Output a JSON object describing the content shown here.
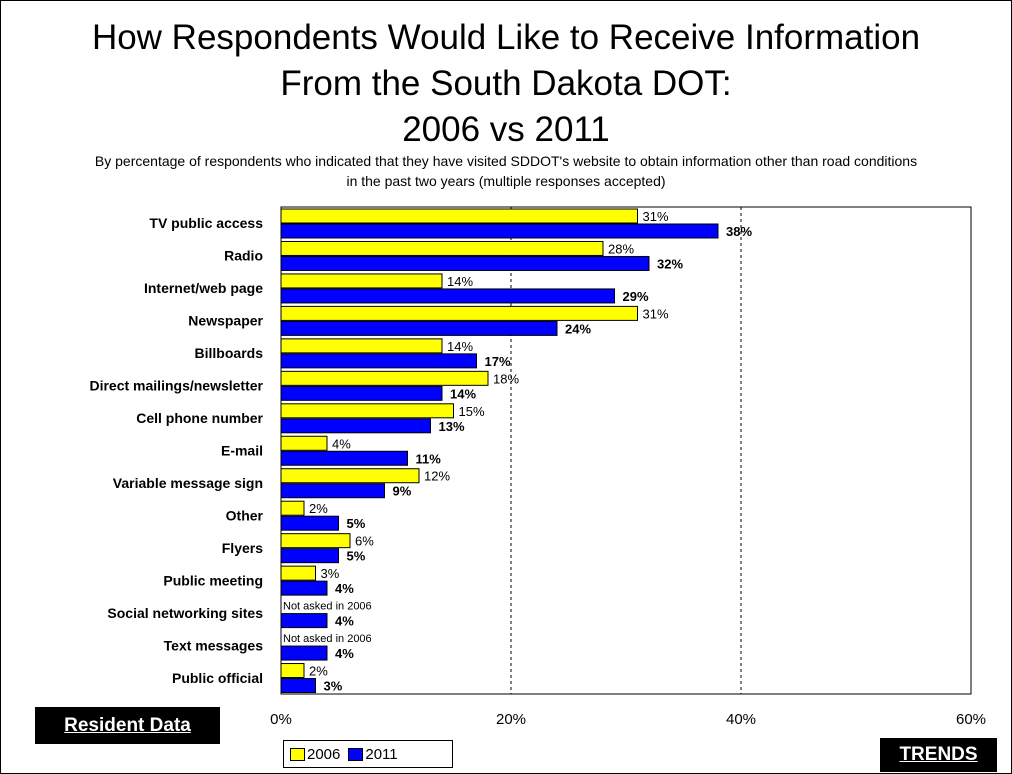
{
  "title_lines": [
    "How Respondents Would Like to Receive Information",
    "From the South Dakota DOT:",
    "2006 vs 2011"
  ],
  "subtitle_lines": [
    "By percentage of respondents who indicated that they have visited SDDOT's website to obtain information other than road conditions",
    "in the past two years (multiple responses accepted)"
  ],
  "badges": {
    "resident": "Resident Data",
    "trends": "TRENDS"
  },
  "colors": {
    "series_2006": "#ffff00",
    "series_2011": "#0000ff",
    "border": "#000000"
  },
  "chart_data": {
    "type": "bar",
    "orientation": "horizontal",
    "title": "How Respondents Would Like to Receive Information From the South Dakota DOT: 2006 vs 2011",
    "categories": [
      "TV public access",
      "Radio",
      "Internet/web page",
      "Newspaper",
      "Billboards",
      "Direct mailings/newsletter",
      "Cell phone number",
      "E-mail",
      "Variable message sign",
      "Other",
      "Flyers",
      "Public meeting",
      "Social networking sites",
      "Text messages",
      "Public official"
    ],
    "series": [
      {
        "name": "2006",
        "values": [
          31,
          28,
          14,
          31,
          14,
          18,
          15,
          4,
          12,
          2,
          6,
          3,
          null,
          null,
          2
        ],
        "labels": [
          "31%",
          "28%",
          "14%",
          "31%",
          "14%",
          "18%",
          "15%",
          "4%",
          "12%",
          "2%",
          "6%",
          "3%",
          "Not asked in 2006",
          "Not asked in 2006",
          "2%"
        ]
      },
      {
        "name": "2011",
        "values": [
          38,
          32,
          29,
          24,
          17,
          14,
          13,
          11,
          9,
          5,
          5,
          4,
          4,
          4,
          3
        ],
        "labels": [
          "38%",
          "32%",
          "29%",
          "24%",
          "17%",
          "14%",
          "13%",
          "11%",
          "9%",
          "5%",
          "5%",
          "4%",
          "4%",
          "4%",
          "3%"
        ]
      }
    ],
    "xlim": [
      0,
      60
    ],
    "xticks": [
      0,
      20,
      40,
      60
    ],
    "xtick_labels": [
      "0%",
      "20%",
      "40%",
      "60%"
    ],
    "gridlines": [
      20,
      40
    ],
    "grid": "vertical dashed",
    "legend_position": "bottom"
  }
}
